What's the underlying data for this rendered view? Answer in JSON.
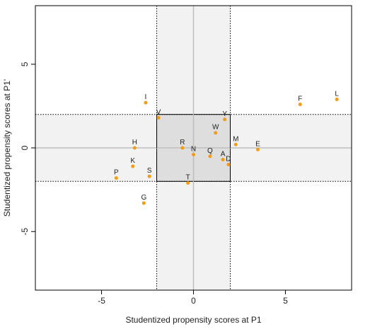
{
  "chart_data": {
    "type": "scatter",
    "xlabel": "Studentized propensity scores at P1",
    "ylabel": "Studentized propensity scores at P1'",
    "xlim": [
      -8.6,
      8.6
    ],
    "ylim": [
      -8.5,
      8.5
    ],
    "x_ticks": [
      -5,
      0,
      5
    ],
    "y_ticks": [
      -5,
      0,
      5
    ],
    "tick_labels": {
      "x": [
        "-5",
        "0",
        "5"
      ],
      "y": [
        "-5",
        "0",
        "5"
      ]
    },
    "thresholds": {
      "x": [
        -2,
        2
      ],
      "y": [
        -2,
        2
      ]
    },
    "grid": false,
    "point_color": "#f39c12",
    "band_color": "#f2f2f2",
    "center_color": "#dedede",
    "zero_line_color": "#bdbdbd",
    "points": [
      {
        "label": "I",
        "x": -2.6,
        "y": 2.7
      },
      {
        "label": "V",
        "x": -1.9,
        "y": 1.8
      },
      {
        "label": "F",
        "x": 5.8,
        "y": 2.6
      },
      {
        "label": "L",
        "x": 7.8,
        "y": 2.9
      },
      {
        "label": "Y",
        "x": 1.7,
        "y": 1.7
      },
      {
        "label": "W",
        "x": 1.2,
        "y": 0.9
      },
      {
        "label": "M",
        "x": 2.3,
        "y": 0.2
      },
      {
        "label": "E",
        "x": 3.5,
        "y": -0.1
      },
      {
        "label": "H",
        "x": -3.2,
        "y": 0.0
      },
      {
        "label": "R",
        "x": -0.6,
        "y": 0.0
      },
      {
        "label": "N",
        "x": 0.0,
        "y": -0.4
      },
      {
        "label": "Q",
        "x": 0.9,
        "y": -0.5
      },
      {
        "label": "A",
        "x": 1.6,
        "y": -0.7
      },
      {
        "label": "D",
        "x": 1.9,
        "y": -1.0
      },
      {
        "label": "K",
        "x": -3.3,
        "y": -1.1
      },
      {
        "label": "S",
        "x": -2.4,
        "y": -1.7
      },
      {
        "label": "P",
        "x": -4.2,
        "y": -1.8
      },
      {
        "label": "T",
        "x": -0.3,
        "y": -2.1
      },
      {
        "label": "G",
        "x": -2.7,
        "y": -3.3
      }
    ]
  }
}
